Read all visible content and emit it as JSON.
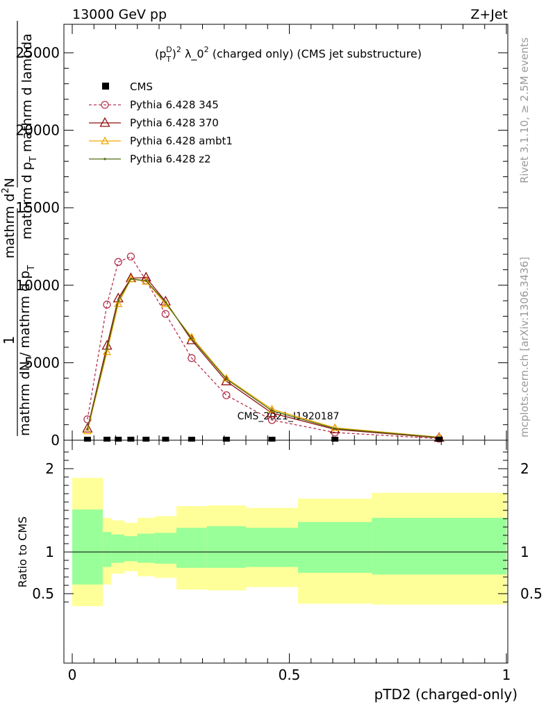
{
  "header": {
    "energy": "13000 GeV pp",
    "process": "Z+Jet"
  },
  "side": {
    "rivet": "Rivet 3.1.10, ≥ 2.5M events",
    "mcplots": "mcplots.cern.ch [arXiv:1306.3436]"
  },
  "watermark": "CMS_2021_I1920187",
  "legend": {
    "cms": "CMS",
    "p345": "Pythia 6.428 345",
    "p370": "Pythia 6.428 370",
    "ambt1": "Pythia 6.428 ambt1",
    "z2": "Pythia 6.428 z2"
  },
  "colors": {
    "p345": "#b5334f",
    "p370": "#8f0e0e",
    "ambt1": "#f0a800",
    "z2": "#4f6b10",
    "band_inner": "#99ff99",
    "band_outer": "#ffff99"
  },
  "chart_data": [
    {
      "type": "line",
      "title": "(p_T^D)^2 λ_0^2 (charged only) (CMS jet substructure)",
      "title_parts": {
        "base": "(p",
        "sub": "T",
        "sup": "D",
        "sup2": "2",
        "rest": " λ_0",
        "rest_sup": "2",
        "tail": " (charged only) (CMS jet substructure)"
      },
      "ylabel": "1 / mathrm d N / mathrm d p_T mathrm d^2N / mathrm d p_T mathrm d lambda",
      "ylabel_parts": {
        "one": "1",
        "den": "mathrm dN / mathrm d p",
        "den_sub": "T",
        "num": "mathrm d",
        "num_sup": "2",
        "num2": "N",
        "den2": "mathrm d p",
        "den2_sub": "T",
        "den3": " mathrm d lambda"
      },
      "xlim": [
        0,
        1
      ],
      "ylim": [
        0,
        25000
      ],
      "y_ticks": [
        "0",
        "5000",
        "10000",
        "15000",
        "20000",
        "25000"
      ],
      "cms": {
        "x": [
          0.035,
          0.08,
          0.106,
          0.135,
          0.17,
          0.215,
          0.275,
          0.355,
          0.46,
          0.605,
          0.845
        ],
        "y": [
          0,
          0,
          0,
          0,
          0,
          0,
          0,
          0,
          0,
          0,
          0
        ]
      },
      "series": [
        {
          "name": "Pythia 6.428 345",
          "key": "p345",
          "marker": "circle",
          "dashed": true,
          "x": [
            0.035,
            0.08,
            0.106,
            0.135,
            0.17,
            0.215,
            0.275,
            0.355,
            0.46,
            0.605,
            0.845
          ],
          "y": [
            1350,
            8750,
            11500,
            11850,
            10300,
            8150,
            5300,
            2900,
            1300,
            500,
            100
          ]
        },
        {
          "name": "Pythia 6.428 370",
          "key": "p370",
          "marker": "triangle",
          "dashed": false,
          "x": [
            0.035,
            0.08,
            0.106,
            0.135,
            0.17,
            0.215,
            0.275,
            0.355,
            0.46,
            0.605,
            0.845
          ],
          "y": [
            750,
            6100,
            9150,
            10450,
            10500,
            8950,
            6450,
            3800,
            1750,
            700,
            150
          ]
        },
        {
          "name": "Pythia 6.428 ambt1",
          "key": "ambt1",
          "marker": "triangle-small",
          "dashed": false,
          "x": [
            0.035,
            0.08,
            0.106,
            0.135,
            0.17,
            0.215,
            0.275,
            0.355,
            0.46,
            0.605,
            0.845
          ],
          "y": [
            600,
            5700,
            8800,
            10400,
            10250,
            8800,
            6650,
            4000,
            2000,
            800,
            200
          ]
        },
        {
          "name": "Pythia 6.428 z2",
          "key": "z2",
          "marker": "dot",
          "dashed": false,
          "x": [
            0.035,
            0.08,
            0.106,
            0.135,
            0.17,
            0.215,
            0.275,
            0.355,
            0.46,
            0.605,
            0.845
          ],
          "y": [
            700,
            5900,
            9000,
            10400,
            10300,
            8900,
            6550,
            3950,
            1900,
            750,
            180
          ]
        }
      ]
    },
    {
      "type": "area",
      "ylabel": "Ratio to CMS",
      "xlabel": "pTD2 (charged-only)",
      "xlim": [
        0,
        1
      ],
      "ylim": [
        0.35,
        2.25
      ],
      "x_ticks": [
        "0",
        "0.5",
        "1"
      ],
      "y_ticks": [
        "0.5",
        "1",
        "2"
      ],
      "reference": 1,
      "bins": [
        {
          "x0": 0.0,
          "x1": 0.07,
          "inner": [
            0.61,
            1.51
          ],
          "outer": [
            0.35,
            1.89
          ]
        },
        {
          "x0": 0.07,
          "x1": 0.09,
          "inner": [
            0.82,
            1.24
          ],
          "outer": [
            0.61,
            1.41
          ]
        },
        {
          "x0": 0.09,
          "x1": 0.12,
          "inner": [
            0.87,
            1.21
          ],
          "outer": [
            0.74,
            1.38
          ]
        },
        {
          "x0": 0.12,
          "x1": 0.15,
          "inner": [
            0.89,
            1.19
          ],
          "outer": [
            0.77,
            1.35
          ]
        },
        {
          "x0": 0.15,
          "x1": 0.19,
          "inner": [
            0.87,
            1.22
          ],
          "outer": [
            0.71,
            1.41
          ]
        },
        {
          "x0": 0.19,
          "x1": 0.24,
          "inner": [
            0.86,
            1.23
          ],
          "outer": [
            0.69,
            1.43
          ]
        },
        {
          "x0": 0.24,
          "x1": 0.31,
          "inner": [
            0.81,
            1.29
          ],
          "outer": [
            0.55,
            1.55
          ]
        },
        {
          "x0": 0.31,
          "x1": 0.4,
          "inner": [
            0.81,
            1.31
          ],
          "outer": [
            0.54,
            1.56
          ]
        },
        {
          "x0": 0.4,
          "x1": 0.52,
          "inner": [
            0.82,
            1.29
          ],
          "outer": [
            0.58,
            1.53
          ]
        },
        {
          "x0": 0.52,
          "x1": 0.69,
          "inner": [
            0.75,
            1.36
          ],
          "outer": [
            0.38,
            1.64
          ]
        },
        {
          "x0": 0.69,
          "x1": 1.0,
          "inner": [
            0.73,
            1.41
          ],
          "outer": [
            0.37,
            1.71
          ]
        }
      ]
    }
  ]
}
